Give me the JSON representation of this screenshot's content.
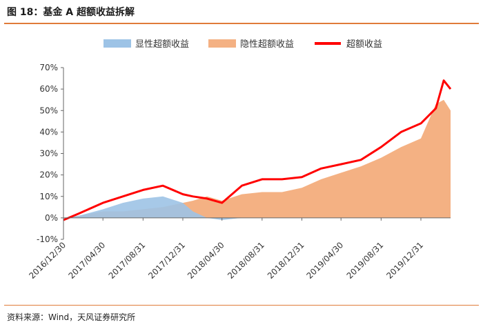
{
  "figure": {
    "title": "图 18：基金 A 超额收益拆解",
    "source": "资料来源：Wind，天风证券研究所"
  },
  "chart_data": {
    "type": "area",
    "title": "",
    "xlabel": "",
    "ylabel": "",
    "ylim": [
      -10,
      70
    ],
    "yticks": [
      "70%",
      "60%",
      "50%",
      "40%",
      "30%",
      "20%",
      "10%",
      "0%",
      "-10%"
    ],
    "ytick_values": [
      70,
      60,
      50,
      40,
      30,
      20,
      10,
      0,
      -10
    ],
    "xticks": [
      "2016/12/30",
      "2017/04/30",
      "2017/08/31",
      "2017/12/31",
      "2018/04/30",
      "2018/08/31",
      "2018/12/31",
      "2019/04/30",
      "2019/08/31",
      "2019/12/31"
    ],
    "legend_position": "top-center",
    "grid": false,
    "colors": {
      "explicit": "#9dc3e6",
      "implicit": "#f4b183",
      "total": "#ff0000",
      "axis": "#666666"
    },
    "dates": [
      "2016/12/30",
      "2017/02/15",
      "2017/04/30",
      "2017/06/30",
      "2017/08/31",
      "2017/10/31",
      "2017/12/31",
      "2018/01/31",
      "2018/03/15",
      "2018/04/30",
      "2018/06/30",
      "2018/08/31",
      "2018/10/31",
      "2018/12/31",
      "2019/02/28",
      "2019/04/30",
      "2019/06/30",
      "2019/08/31",
      "2019/10/31",
      "2019/12/31",
      "2020/02/15",
      "2020/03/10",
      "2020/03/31"
    ],
    "series": [
      {
        "name": "显性超额收益",
        "key": "explicit",
        "values": [
          0,
          1,
          4,
          7,
          9,
          10,
          7,
          3,
          0,
          -1,
          0,
          0,
          0,
          0,
          0,
          0,
          0,
          0,
          0,
          0,
          0,
          0,
          0
        ]
      },
      {
        "name": "隐性超额收益",
        "key": "implicit",
        "values": [
          0,
          1,
          3,
          3,
          4,
          5,
          7,
          8,
          10,
          8,
          11,
          12,
          12,
          14,
          18,
          21,
          24,
          28,
          33,
          37,
          53,
          55,
          50
        ]
      },
      {
        "name": "超额收益",
        "key": "total",
        "values": [
          -1,
          2,
          7,
          10,
          13,
          15,
          11,
          10,
          9,
          7,
          15,
          18,
          18,
          19,
          23,
          25,
          27,
          33,
          40,
          44,
          51,
          64,
          60
        ]
      }
    ]
  }
}
